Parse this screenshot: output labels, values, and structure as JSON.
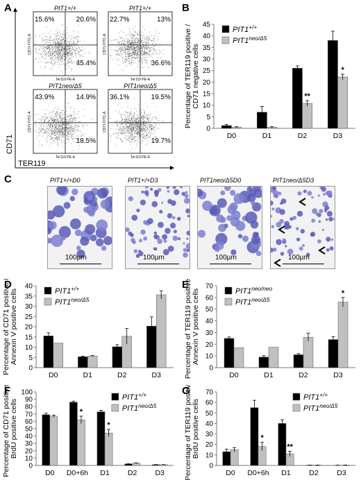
{
  "panels": {
    "a": {
      "letter": "A"
    },
    "b": {
      "letter": "B"
    },
    "c": {
      "letter": "C"
    },
    "d": {
      "letter": "D"
    },
    "e": {
      "letter": "E"
    },
    "f": {
      "letter": "F"
    },
    "g": {
      "letter": "G"
    }
  },
  "flow": {
    "y_axis_label": "CD71",
    "x_axis_label": "TER119",
    "plot_y_label": "CD71 FITC-A",
    "plot_x_label": "Ter119 PE-A",
    "plots": [
      {
        "title": "PIT1+/+",
        "tl": "15.6%",
        "tr": "20.6%",
        "br": "45.4%"
      },
      {
        "title": "PIT1+/+",
        "tl": "22.7%",
        "tr": "13%",
        "br": "36.6%"
      },
      {
        "title": "PIT1neo/Δ5",
        "tl": "43.9%",
        "tr": "14.9%",
        "br": "18.5%"
      },
      {
        "title": "PIT1neo/Δ5",
        "tl": "36.1%",
        "tr": "19.5%",
        "br": "19.7%"
      }
    ]
  },
  "micro": {
    "scale_label": "100µm",
    "images": [
      {
        "title": "PIT1+/+D0"
      },
      {
        "title": "PIT1+/+D3"
      },
      {
        "title": "PIT1neo/Δ5D0"
      },
      {
        "title": "PIT1neo/Δ5D3"
      }
    ]
  },
  "colors": {
    "wt": "#000000",
    "mut": "#c0c0c0"
  },
  "chart_data": [
    {
      "id": "B",
      "type": "bar",
      "categories": [
        "D0",
        "D1",
        "D2",
        "D3"
      ],
      "series": [
        {
          "name": "PIT1+/+",
          "values": [
            1.2,
            7,
            26,
            38
          ],
          "err": [
            0.5,
            2.5,
            1,
            4
          ]
        },
        {
          "name": "PIT1neo/Δ5",
          "values": [
            0.5,
            0.5,
            10.8,
            22.2
          ],
          "err": [
            0.2,
            0.2,
            1.2,
            1.2
          ]
        }
      ],
      "ylabel": "Percentage of TER119 positive /CD71 negative cells",
      "ylim": [
        0,
        45
      ],
      "ystep": 5,
      "legend": "top-left",
      "annotations": [
        {
          "category": "D2",
          "series": 1,
          "text": "**"
        },
        {
          "category": "D3",
          "series": 1,
          "text": "*"
        }
      ]
    },
    {
      "id": "D",
      "type": "bar",
      "categories": [
        "D0",
        "D1",
        "D2",
        "D3"
      ],
      "series": [
        {
          "name": "PIT1+/+",
          "values": [
            15.5,
            5.3,
            10.2,
            20.3
          ],
          "err": [
            1.5,
            0.3,
            1,
            4.5
          ]
        },
        {
          "name": "PIT1neo/Δ5",
          "values": [
            12,
            5.7,
            15.3,
            35.6
          ],
          "err": [
            0,
            0.2,
            3.8,
            2
          ]
        }
      ],
      "ylabel": "Percentage of CD71 positive / Annexin V positive cells",
      "ylim": [
        0,
        40
      ],
      "ystep": 5,
      "legend": "top-left",
      "annotations": []
    },
    {
      "id": "E",
      "type": "bar",
      "categories": [
        "D0",
        "D1",
        "D2",
        "D3"
      ],
      "series": [
        {
          "name": "PIT1neo/neo",
          "values": [
            25,
            9,
            11,
            24
          ],
          "err": [
            1.2,
            1.2,
            1,
            2.5
          ]
        },
        {
          "name": "PIT1neo/Δ5",
          "values": [
            17,
            17.5,
            26,
            56
          ],
          "err": [
            0,
            0,
            3.5,
            4
          ]
        }
      ],
      "ylabel": "Percentage of TER119 positive / Annexin V positive cells",
      "ylim": [
        0,
        70
      ],
      "ystep": 10,
      "legend": "top-left",
      "annotations": [
        {
          "category": "D3",
          "series": 1,
          "text": "*"
        }
      ]
    },
    {
      "id": "F",
      "type": "bar",
      "categories": [
        "D0",
        "D0+6h",
        "D1",
        "D2",
        "D3"
      ],
      "series": [
        {
          "name": "PIT1+/+",
          "values": [
            69,
            86,
            73,
            2,
            1
          ],
          "err": [
            2,
            1.5,
            2,
            0.3,
            0.2
          ]
        },
        {
          "name": "PIT1neo/Δ5",
          "values": [
            67,
            62,
            44,
            3,
            1
          ],
          "err": [
            1.5,
            5,
            5,
            0.5,
            0.2
          ]
        }
      ],
      "ylabel": "Percentage of CD71 positive / BrdU positive cells",
      "ylim": [
        0,
        100
      ],
      "ystep": 10,
      "legend": "top-right",
      "annotations": [
        {
          "category": "D0+6h",
          "series": 1,
          "text": "*"
        },
        {
          "category": "D1",
          "series": 1,
          "text": "*"
        }
      ]
    },
    {
      "id": "G",
      "type": "bar",
      "categories": [
        "D0",
        "D0+6h",
        "D1",
        "D2",
        "D3"
      ],
      "series": [
        {
          "name": "PIT1+/+",
          "values": [
            13,
            55,
            40,
            0.3,
            0.2
          ],
          "err": [
            2.5,
            7,
            3.5,
            0.1,
            0.1
          ]
        },
        {
          "name": "PIT1neo/Δ5",
          "values": [
            15,
            18,
            11,
            0.3,
            0.3
          ],
          "err": [
            2,
            4,
            2.5,
            0.1,
            0.1
          ]
        }
      ],
      "ylabel": "Percentage of TER119 positive / BrdU positive cells",
      "ylim": [
        0,
        70
      ],
      "ystep": 10,
      "legend": "top-right",
      "annotations": [
        {
          "category": "D0+6h",
          "series": 1,
          "text": "*"
        },
        {
          "category": "D1",
          "series": 1,
          "text": "**"
        }
      ]
    }
  ]
}
